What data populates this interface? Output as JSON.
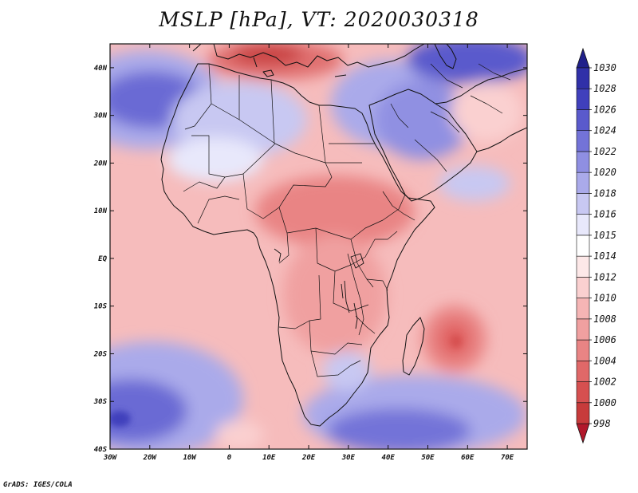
{
  "title": "MSLP [hPa], VT: 2020030318",
  "credit": "GrADS: IGES/COLA",
  "map": {
    "lon_range": [
      -30,
      75
    ],
    "lat_range": [
      -40,
      45
    ],
    "lon_ticks": [
      {
        "value": -30,
        "label": "30W"
      },
      {
        "value": -20,
        "label": "20W"
      },
      {
        "value": -10,
        "label": "10W"
      },
      {
        "value": 0,
        "label": "0"
      },
      {
        "value": 10,
        "label": "10E"
      },
      {
        "value": 20,
        "label": "20E"
      },
      {
        "value": 30,
        "label": "30E"
      },
      {
        "value": 40,
        "label": "40E"
      },
      {
        "value": 50,
        "label": "50E"
      },
      {
        "value": 60,
        "label": "60E"
      },
      {
        "value": 70,
        "label": "70E"
      }
    ],
    "lat_ticks": [
      {
        "value": 40,
        "label": "40N"
      },
      {
        "value": 30,
        "label": "30N"
      },
      {
        "value": 20,
        "label": "20N"
      },
      {
        "value": 10,
        "label": "10N"
      },
      {
        "value": 0,
        "label": "EQ"
      },
      {
        "value": -10,
        "label": "10S"
      },
      {
        "value": -20,
        "label": "20S"
      },
      {
        "value": -30,
        "label": "30S"
      },
      {
        "value": -40,
        "label": "40S"
      }
    ]
  },
  "colorbar": {
    "levels": [
      "998",
      "1000",
      "1002",
      "1004",
      "1006",
      "1008",
      "1010",
      "1012",
      "1014",
      "1015",
      "1016",
      "1018",
      "1020",
      "1022",
      "1024",
      "1026",
      "1028",
      "1030"
    ],
    "colors": [
      "#b2182b",
      "#c73b3b",
      "#d65050",
      "#e06868",
      "#e98484",
      "#f0a0a0",
      "#f5b5b5",
      "#fad0d0",
      "#fde8e8",
      "#ffffff",
      "#e8e8fb",
      "#c8c8f2",
      "#aaaaea",
      "#8f8fe2",
      "#7373d8",
      "#5a5acc",
      "#4040bc",
      "#3030a8",
      "#20208a"
    ]
  }
}
